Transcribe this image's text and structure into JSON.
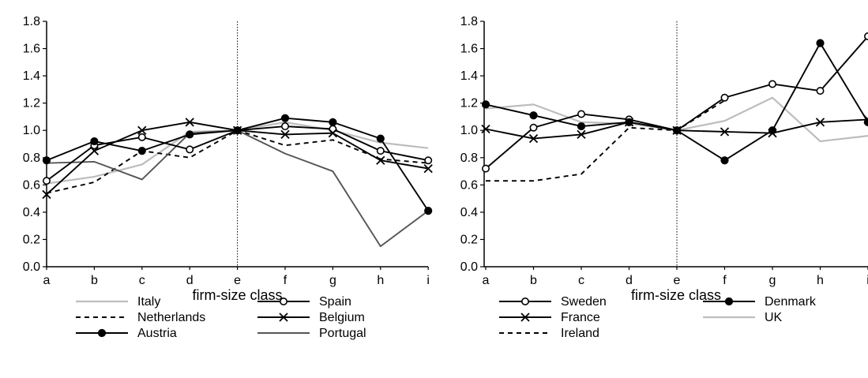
{
  "chart_data": [
    {
      "type": "line",
      "xlabel": "firm-size class",
      "ylabel": "",
      "categories": [
        "a",
        "b",
        "c",
        "d",
        "e",
        "f",
        "g",
        "h",
        "i"
      ],
      "ylim": [
        0,
        1.8
      ],
      "yticks": [
        "0.0",
        "0.2",
        "0.4",
        "0.6",
        "0.8",
        "1.0",
        "1.2",
        "1.4",
        "1.6",
        "1.8"
      ],
      "reference_category": "e",
      "grid": false,
      "legend_position": "bottom",
      "series": [
        {
          "name": "Italy",
          "color": "#bdbdbd",
          "dash": "solid",
          "marker": "none",
          "values": [
            0.61,
            0.66,
            0.75,
            0.99,
            1.0,
            1.06,
            1.0,
            0.91,
            0.87
          ]
        },
        {
          "name": "Spain",
          "color": "#000000",
          "dash": "solid",
          "marker": "open-circle",
          "values": [
            0.63,
            0.89,
            0.95,
            0.86,
            1.0,
            1.03,
            1.01,
            0.85,
            0.78
          ]
        },
        {
          "name": "Netherlands",
          "color": "#000000",
          "dash": "dashed",
          "marker": "none",
          "values": [
            0.54,
            0.62,
            0.85,
            0.8,
            1.0,
            0.89,
            0.93,
            0.79,
            0.76
          ]
        },
        {
          "name": "Belgium",
          "color": "#000000",
          "dash": "solid",
          "marker": "x",
          "values": [
            0.53,
            0.85,
            1.0,
            1.06,
            1.0,
            0.97,
            0.98,
            0.78,
            0.72
          ]
        },
        {
          "name": "Austria",
          "color": "#000000",
          "dash": "solid",
          "marker": "filled-circle",
          "values": [
            0.78,
            0.92,
            0.85,
            0.97,
            1.0,
            1.09,
            1.06,
            0.94,
            0.41
          ]
        },
        {
          "name": "Portugal",
          "color": "#555555",
          "dash": "solid",
          "marker": "none",
          "values": [
            0.76,
            0.77,
            0.64,
            0.98,
            1.0,
            0.83,
            0.7,
            0.15,
            0.41
          ]
        }
      ]
    },
    {
      "type": "line",
      "xlabel": "firm-size class",
      "ylabel": "",
      "categories": [
        "a",
        "b",
        "c",
        "d",
        "e",
        "f",
        "g",
        "h",
        "i"
      ],
      "ylim": [
        0,
        1.8
      ],
      "yticks": [
        "0.0",
        "0.2",
        "0.4",
        "0.6",
        "0.8",
        "1.0",
        "1.2",
        "1.4",
        "1.6",
        "1.8"
      ],
      "reference_category": "e",
      "grid": false,
      "legend_position": "bottom",
      "series": [
        {
          "name": "Sweden",
          "color": "#000000",
          "dash": "solid",
          "marker": "open-circle",
          "values": [
            0.72,
            1.02,
            1.12,
            1.08,
            1.0,
            1.24,
            1.34,
            1.29,
            1.69
          ]
        },
        {
          "name": "Denmark",
          "color": "#000000",
          "dash": "solid",
          "marker": "filled-circle",
          "values": [
            1.19,
            1.11,
            1.03,
            1.06,
            1.0,
            0.78,
            1.0,
            1.64,
            1.06
          ]
        },
        {
          "name": "France",
          "color": "#000000",
          "dash": "solid",
          "marker": "x",
          "values": [
            1.01,
            0.94,
            0.97,
            1.06,
            1.0,
            0.99,
            0.98,
            1.06,
            1.08
          ]
        },
        {
          "name": "UK",
          "color": "#bdbdbd",
          "dash": "solid",
          "marker": "none",
          "values": [
            1.16,
            1.19,
            1.06,
            1.05,
            1.0,
            1.07,
            1.24,
            0.92,
            0.96
          ]
        },
        {
          "name": "Ireland",
          "color": "#000000",
          "dash": "dashed",
          "marker": "none",
          "values": [
            0.63,
            0.63,
            0.68,
            1.02,
            1.0,
            1.22,
            null,
            null,
            null
          ]
        }
      ]
    }
  ]
}
